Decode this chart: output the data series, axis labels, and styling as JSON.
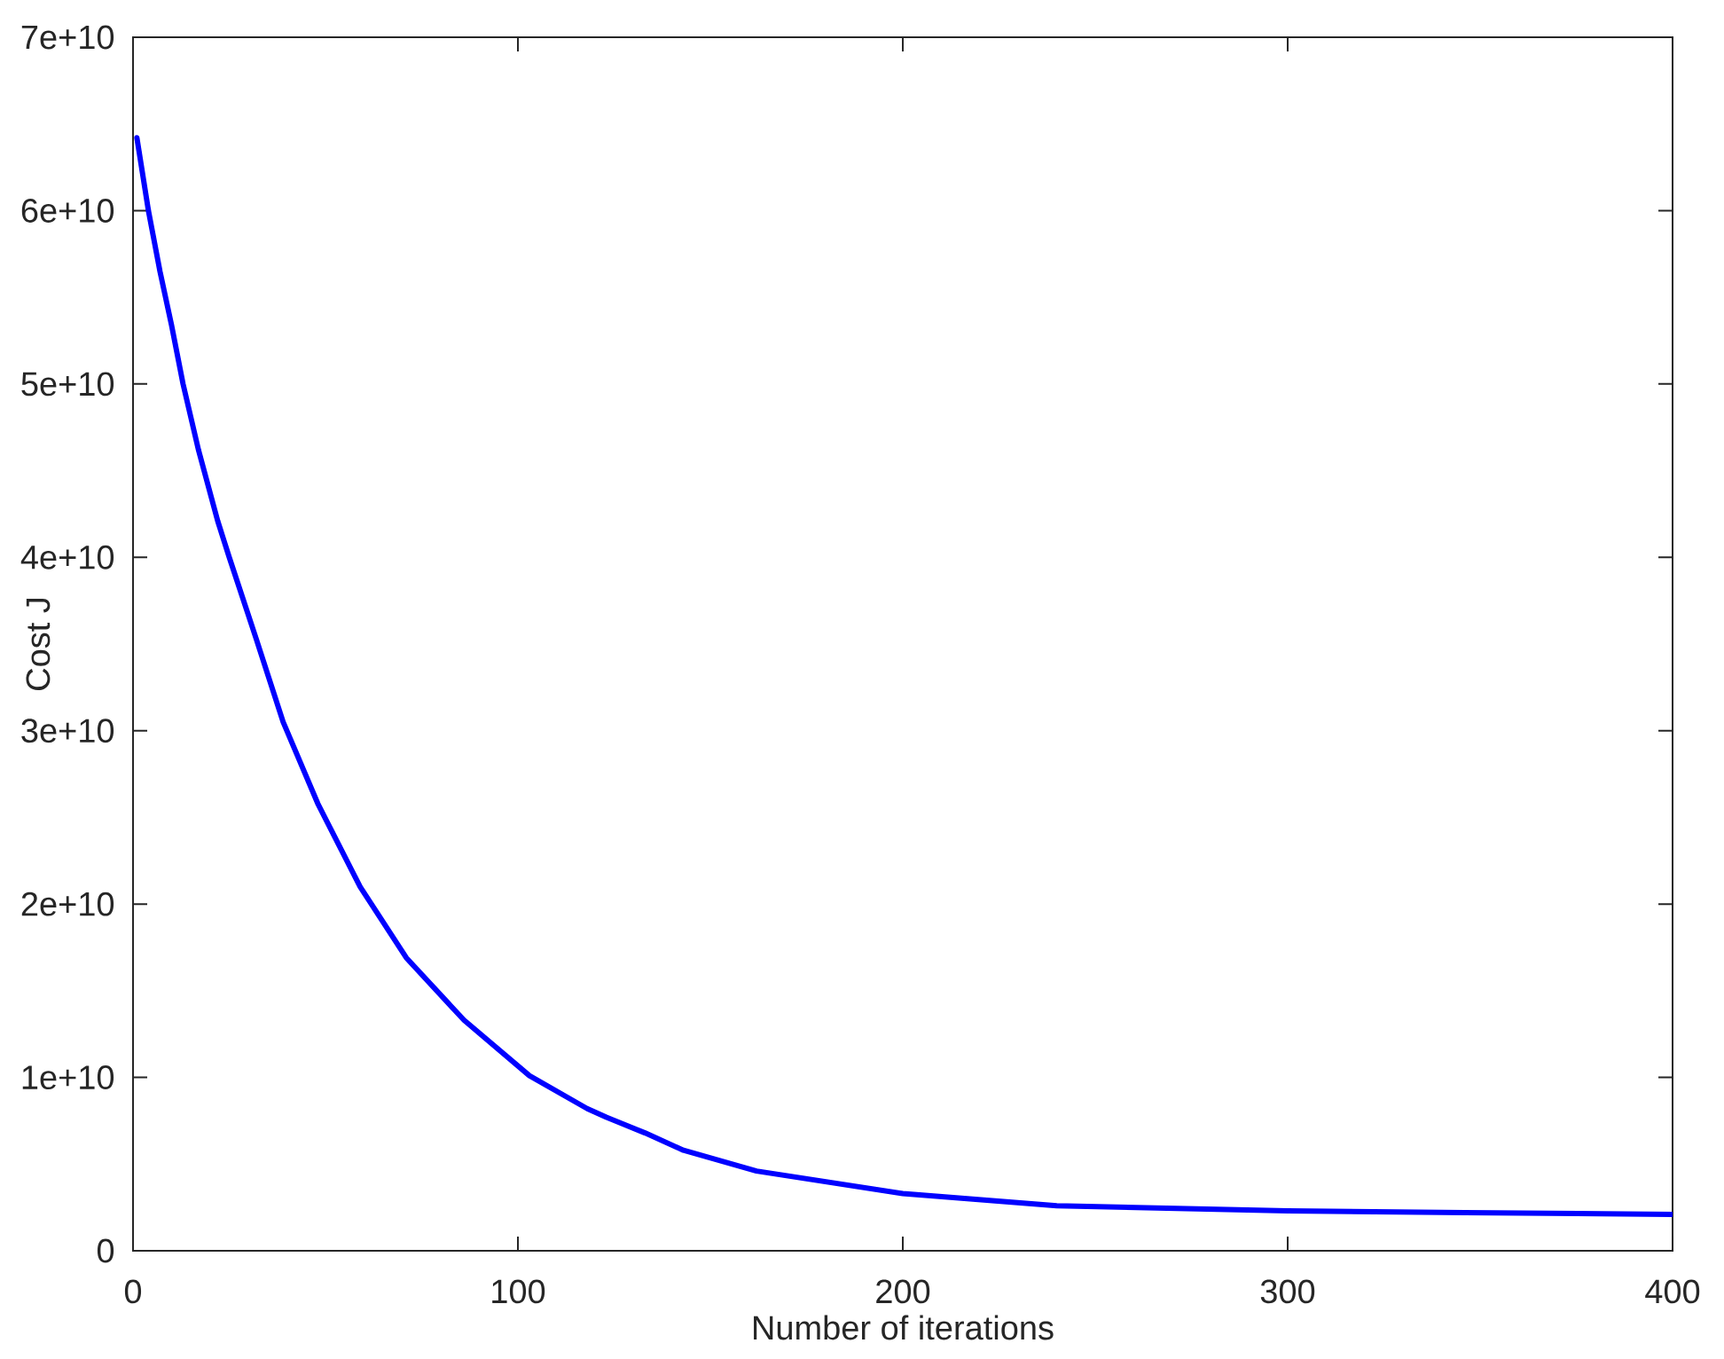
{
  "chart_data": {
    "type": "line",
    "xlabel": "Number of iterations",
    "ylabel": "Cost J",
    "x": [
      1,
      4,
      7,
      10,
      13,
      17,
      22,
      25,
      32,
      39,
      48,
      59,
      71,
      86,
      103,
      118,
      123,
      133,
      143,
      162,
      200,
      240,
      300,
      346,
      400
    ],
    "values": [
      64200000000,
      60000000000,
      56500000000,
      53400000000,
      50000000000,
      46200000000,
      42100000000,
      40000000000,
      35300000000,
      30500000000,
      25800000000,
      21000000000,
      16900000000,
      13300000000,
      10100000000,
      8200000000,
      7700000000,
      6800000000,
      5800000000,
      4600000000,
      3300000000,
      2600000000,
      2300000000,
      2200000000,
      2100000000
    ],
    "color": "#0000ff",
    "line_style": "solid",
    "xlim": [
      0,
      400
    ],
    "ylim": [
      0,
      70000000000
    ],
    "xticks": [
      0,
      100,
      200,
      300,
      400
    ],
    "yticks": [
      0,
      {
        "value": 10000000000,
        "label": "1e+10"
      },
      {
        "value": 20000000000,
        "label": "2e+10"
      },
      {
        "value": 30000000000,
        "label": "3e+10"
      },
      {
        "value": 40000000000,
        "label": "4e+10"
      },
      {
        "value": 50000000000,
        "label": "5e+10"
      },
      {
        "value": 60000000000,
        "label": "6e+10"
      },
      {
        "value": 70000000000,
        "label": "7e+10"
      }
    ]
  }
}
